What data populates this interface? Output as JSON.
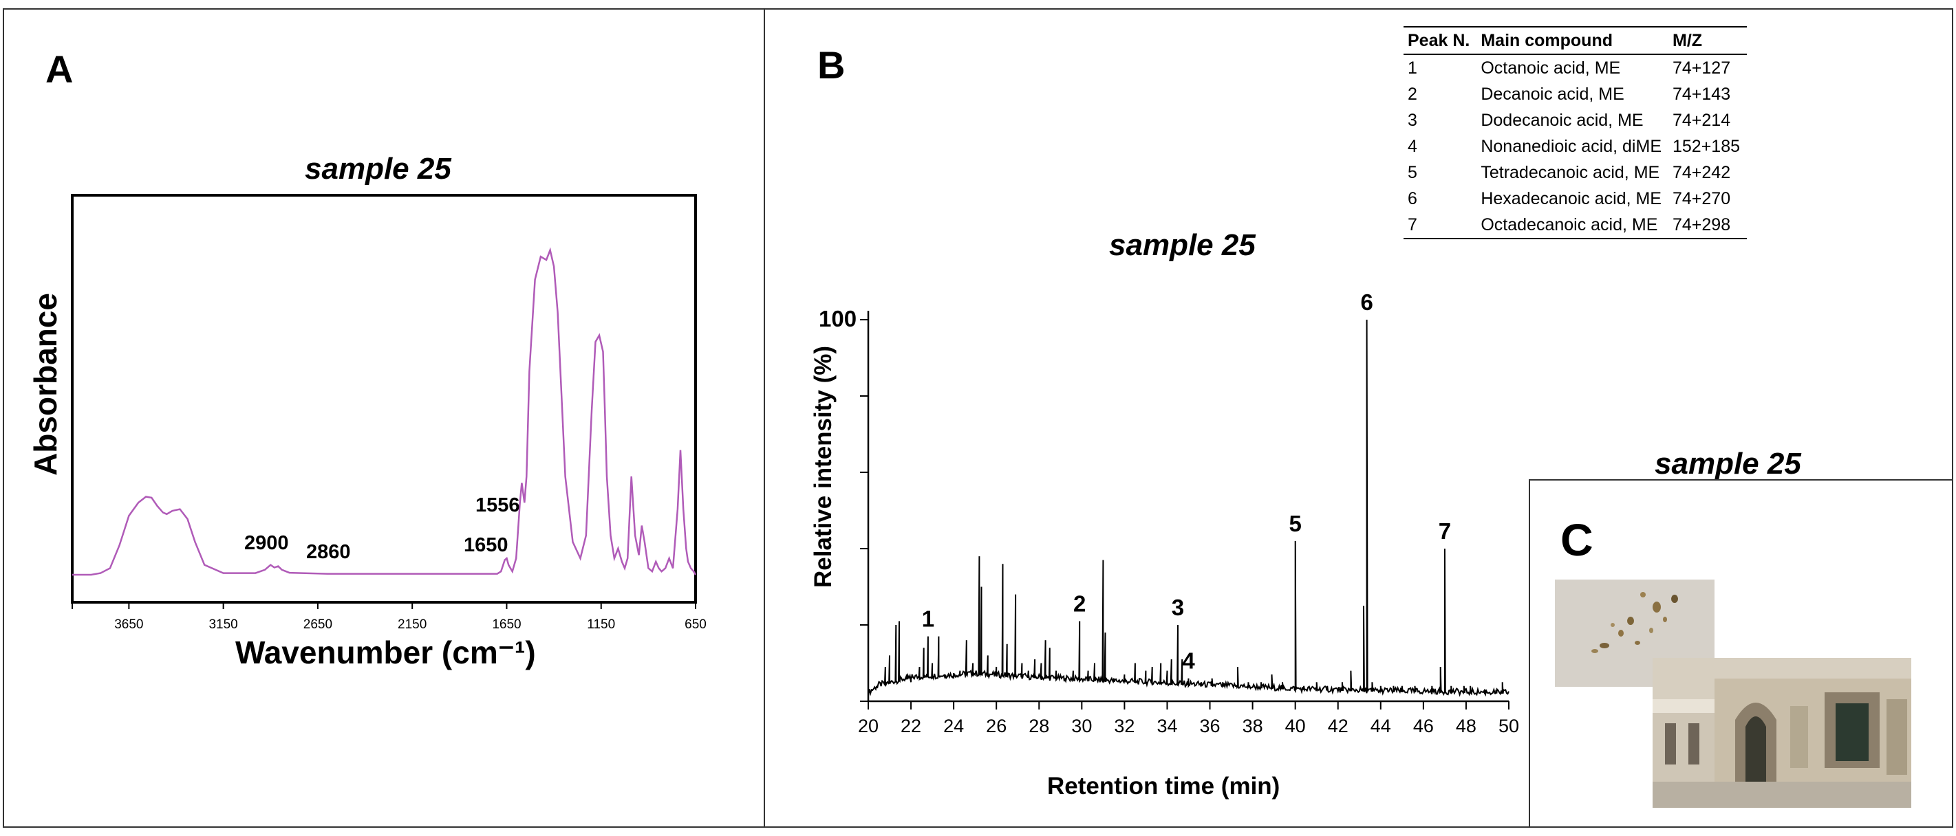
{
  "panelA": {
    "letter": "A",
    "title": "sample 25",
    "ylabel": "Absorbance",
    "xlabel": "Wavenumber (cm⁻¹)",
    "ticks": [
      "3650",
      "3150",
      "2650",
      "2150",
      "1650",
      "1150",
      "650"
    ],
    "annotations": [
      "2900",
      "2860",
      "1556",
      "1650"
    ]
  },
  "panelB": {
    "letter": "B",
    "title": "sample 25",
    "ylabel": "Relative intensity (%)",
    "xlabel": "Retention time (min)",
    "ytop_label": "100",
    "table": {
      "headers": [
        "Peak N.",
        "Main compound",
        "M/Z"
      ],
      "rows": [
        [
          "1",
          "Octanoic acid, ME",
          "74+127"
        ],
        [
          "2",
          "Decanoic acid, ME",
          "74+143"
        ],
        [
          "3",
          "Dodecanoic acid, ME",
          "74+214"
        ],
        [
          "4",
          "Nonanedioic acid, diME",
          "152+185"
        ],
        [
          "5",
          "Tetradecanoic acid, ME",
          "74+242"
        ],
        [
          "6",
          "Hexadecanoic acid, ME",
          "74+270"
        ],
        [
          "7",
          "Octadecanoic acid, ME",
          "74+298"
        ]
      ]
    }
  },
  "panelC": {
    "letter": "C",
    "title": "sample 25"
  },
  "chart_data": [
    {
      "type": "line",
      "title": "sample 25",
      "xlabel": "Wavenumber (cm⁻¹)",
      "ylabel": "Absorbance",
      "xlim": [
        3950,
        650
      ],
      "ylim": [
        0,
        1
      ],
      "x_ticks": [
        3650,
        3150,
        2650,
        2150,
        1650,
        1150,
        650
      ],
      "color": "#b05bb8",
      "series": [
        {
          "name": "sample 25",
          "x": [
            3950,
            3850,
            3800,
            3750,
            3700,
            3650,
            3600,
            3560,
            3530,
            3500,
            3470,
            3450,
            3420,
            3380,
            3340,
            3300,
            3250,
            3150,
            2980,
            2930,
            2900,
            2880,
            2860,
            2840,
            2800,
            2600,
            2150,
            1700,
            1680,
            1660,
            1650,
            1640,
            1620,
            1600,
            1580,
            1570,
            1556,
            1545,
            1530,
            1500,
            1470,
            1440,
            1420,
            1400,
            1380,
            1360,
            1340,
            1300,
            1260,
            1230,
            1200,
            1180,
            1160,
            1140,
            1130,
            1120,
            1100,
            1080,
            1060,
            1040,
            1025,
            1010,
            990,
            970,
            950,
            935,
            920,
            900,
            880,
            860,
            845,
            830,
            810,
            790,
            770,
            745,
            730,
            715,
            700,
            690,
            675,
            660,
            650
          ],
          "y": [
            0.0,
            0.0,
            0.005,
            0.02,
            0.09,
            0.18,
            0.22,
            0.238,
            0.235,
            0.21,
            0.19,
            0.185,
            0.195,
            0.2,
            0.17,
            0.1,
            0.03,
            0.005,
            0.005,
            0.015,
            0.03,
            0.022,
            0.026,
            0.015,
            0.006,
            0.003,
            0.003,
            0.003,
            0.01,
            0.045,
            0.05,
            0.03,
            0.01,
            0.05,
            0.22,
            0.28,
            0.22,
            0.3,
            0.62,
            0.9,
            0.97,
            0.96,
            0.99,
            0.94,
            0.8,
            0.55,
            0.3,
            0.1,
            0.05,
            0.12,
            0.5,
            0.71,
            0.73,
            0.68,
            0.5,
            0.3,
            0.12,
            0.05,
            0.08,
            0.04,
            0.02,
            0.05,
            0.3,
            0.12,
            0.06,
            0.15,
            0.1,
            0.02,
            0.01,
            0.04,
            0.02,
            0.01,
            0.02,
            0.05,
            0.02,
            0.2,
            0.38,
            0.2,
            0.08,
            0.04,
            0.02,
            0.01,
            0.0
          ]
        }
      ]
    },
    {
      "type": "line",
      "title": "sample 25",
      "xlabel": "Retention time (min)",
      "ylabel": "Relative intensity (%)",
      "xlim": [
        20,
        50
      ],
      "ylim": [
        0,
        100
      ],
      "x_ticks": [
        20,
        22,
        24,
        26,
        28,
        30,
        32,
        34,
        36,
        38,
        40,
        42,
        44,
        46,
        48,
        50
      ],
      "baseline": [
        [
          20.0,
          2
        ],
        [
          20.5,
          4
        ],
        [
          22.0,
          6
        ],
        [
          25.0,
          7
        ],
        [
          28.0,
          6
        ],
        [
          32.0,
          5
        ],
        [
          36.0,
          4
        ],
        [
          40.0,
          3
        ],
        [
          44.0,
          2.5
        ],
        [
          50.0,
          2
        ]
      ],
      "peaks": [
        [
          20.4,
          4
        ],
        [
          20.8,
          9
        ],
        [
          21.0,
          12
        ],
        [
          21.3,
          20
        ],
        [
          21.45,
          21
        ],
        [
          21.8,
          7
        ],
        [
          22.0,
          5
        ],
        [
          22.4,
          9
        ],
        [
          22.6,
          14
        ],
        [
          22.8,
          17
        ],
        [
          23.0,
          10
        ],
        [
          23.3,
          17
        ],
        [
          23.6,
          7
        ],
        [
          24.0,
          6
        ],
        [
          24.3,
          8
        ],
        [
          24.6,
          16
        ],
        [
          24.9,
          10
        ],
        [
          25.2,
          38
        ],
        [
          25.3,
          30
        ],
        [
          25.6,
          12
        ],
        [
          26.0,
          9
        ],
        [
          26.3,
          36
        ],
        [
          26.5,
          15
        ],
        [
          26.9,
          28
        ],
        [
          27.2,
          10
        ],
        [
          27.5,
          8
        ],
        [
          27.8,
          11
        ],
        [
          28.1,
          10
        ],
        [
          28.3,
          16
        ],
        [
          28.5,
          14
        ],
        [
          28.8,
          8
        ],
        [
          29.2,
          6
        ],
        [
          29.6,
          8
        ],
        [
          29.9,
          21
        ],
        [
          30.3,
          8
        ],
        [
          30.6,
          10
        ],
        [
          31.0,
          37
        ],
        [
          31.1,
          18
        ],
        [
          31.5,
          6
        ],
        [
          32.0,
          7
        ],
        [
          32.5,
          10
        ],
        [
          33.0,
          8
        ],
        [
          33.3,
          9
        ],
        [
          33.7,
          10
        ],
        [
          34.0,
          8
        ],
        [
          34.2,
          11
        ],
        [
          34.5,
          20
        ],
        [
          34.7,
          11
        ],
        [
          35.0,
          6
        ],
        [
          35.6,
          5
        ],
        [
          36.1,
          6
        ],
        [
          36.6,
          5
        ],
        [
          37.3,
          9
        ],
        [
          37.8,
          5
        ],
        [
          38.4,
          5
        ],
        [
          38.9,
          7
        ],
        [
          39.4,
          5
        ],
        [
          40.0,
          42
        ],
        [
          40.4,
          4
        ],
        [
          41.0,
          5
        ],
        [
          41.5,
          4
        ],
        [
          42.2,
          5
        ],
        [
          42.6,
          8
        ],
        [
          43.2,
          25
        ],
        [
          43.35,
          100
        ],
        [
          43.6,
          5
        ],
        [
          44.0,
          4
        ],
        [
          44.6,
          4
        ],
        [
          45.0,
          4
        ],
        [
          45.6,
          4
        ],
        [
          46.4,
          4
        ],
        [
          46.8,
          9
        ],
        [
          47.0,
          40
        ],
        [
          47.3,
          4
        ],
        [
          47.9,
          4
        ],
        [
          48.2,
          4
        ],
        [
          48.9,
          3
        ],
        [
          49.4,
          3
        ],
        [
          49.7,
          5
        ]
      ],
      "peak_labels": [
        {
          "label": "1",
          "x": 22.8,
          "y": 17
        },
        {
          "label": "2",
          "x": 29.9,
          "y": 21
        },
        {
          "label": "3",
          "x": 34.5,
          "y": 20
        },
        {
          "label": "4",
          "x": 35.0,
          "y": 6
        },
        {
          "label": "5",
          "x": 40.0,
          "y": 42
        },
        {
          "label": "6",
          "x": 43.35,
          "y": 100
        },
        {
          "label": "7",
          "x": 47.0,
          "y": 40
        }
      ]
    }
  ]
}
